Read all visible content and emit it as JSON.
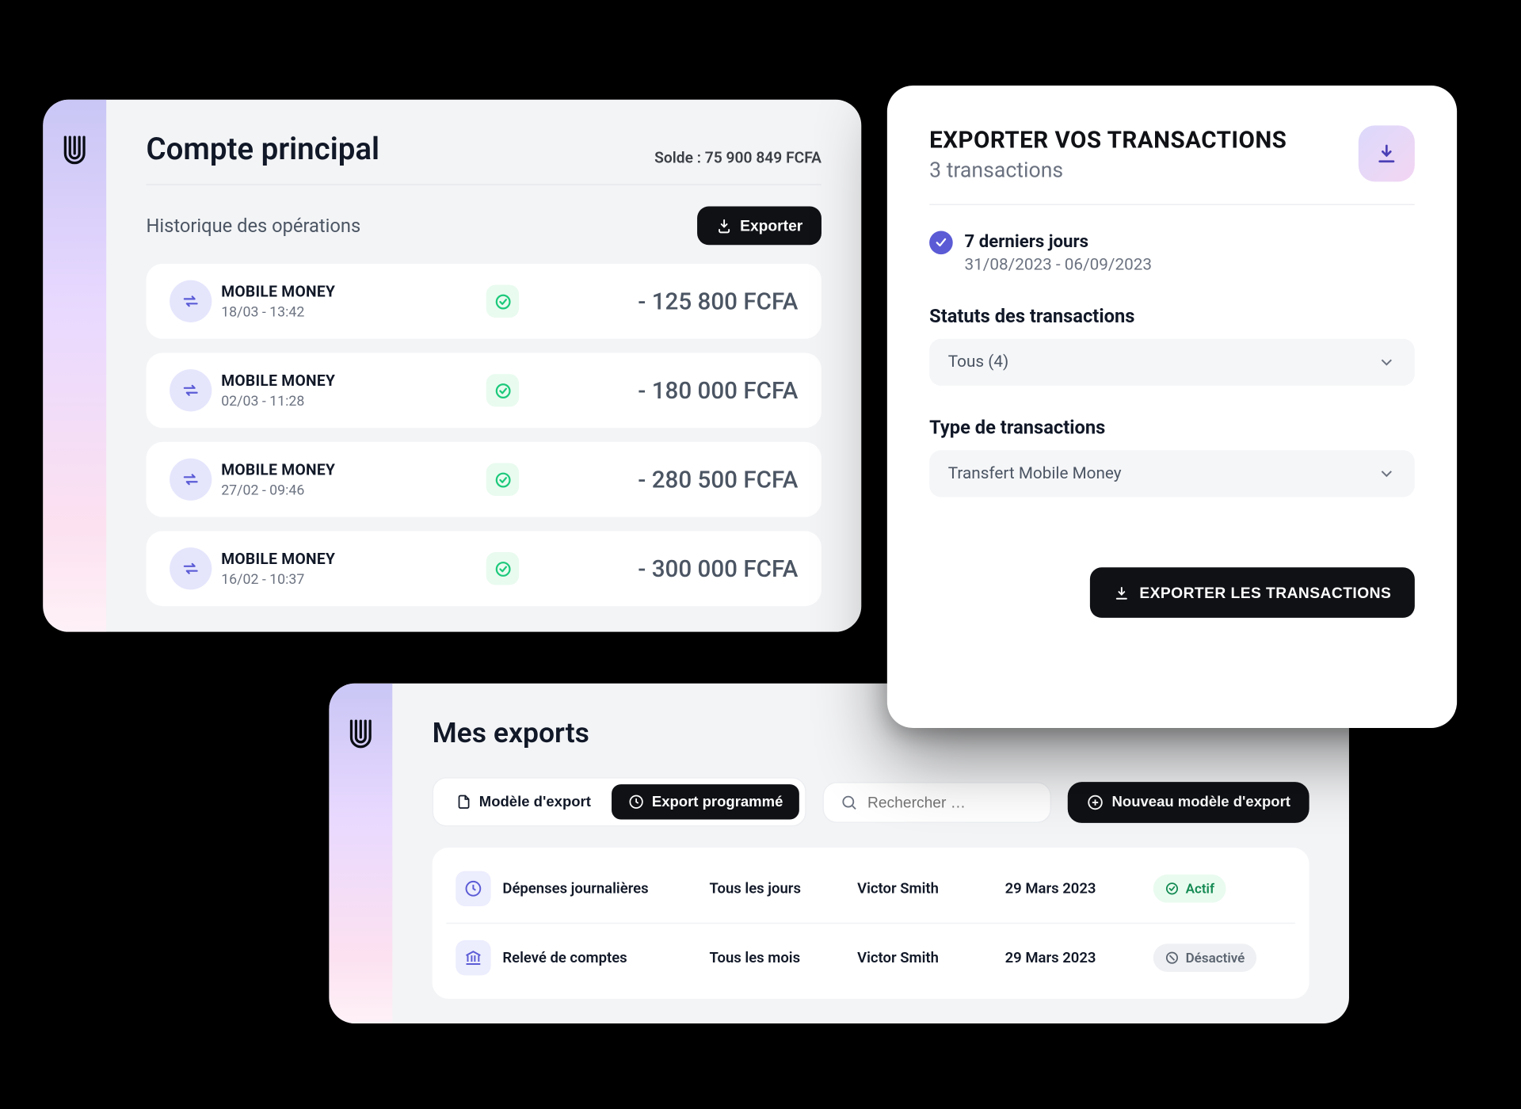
{
  "colors": {
    "page_bg": "#000000",
    "panel_bg": "#f3f4f6",
    "card_bg": "#ffffff",
    "accent_gradient_from": "#c9c6f5",
    "accent_gradient_to": "#fce1f0",
    "text_primary": "#111827",
    "text_muted": "#6b7280",
    "btn_dark": "#0f1115",
    "icon_circle_bg": "#e5e6fc",
    "icon_circle_fg": "#5b5bd6",
    "check_bg": "#e9fbef",
    "check_fg": "#1cc97b",
    "pill_active_bg": "#e9fbef",
    "pill_active_fg": "#148a53",
    "pill_inactive_bg": "#eef0f3",
    "pill_inactive_fg": "#5b6470",
    "select_bg": "#f5f6f8",
    "range_check_bg": "#5b5bd6"
  },
  "panelA": {
    "title": "Compte principal",
    "balance_label": "Solde : 75 900 849 FCFA",
    "history_label": "Historique des opérations",
    "export_label": "Exporter",
    "transactions": [
      {
        "label": "MOBILE MONEY",
        "time": "18/03 - 13:42",
        "amount": "- 125 800 FCFA"
      },
      {
        "label": "MOBILE MONEY",
        "time": "02/03 - 11:28",
        "amount": "- 180 000 FCFA"
      },
      {
        "label": "MOBILE MONEY",
        "time": "27/02 - 09:46",
        "amount": "- 280 500 FCFA"
      },
      {
        "label": "MOBILE MONEY",
        "time": "16/02 - 10:37",
        "amount": "- 300 000 FCFA"
      }
    ]
  },
  "panelB": {
    "title": "Mes exports",
    "tab_template": "Modèle d'export",
    "tab_scheduled": "Export programmé",
    "search_placeholder": "Rechercher …",
    "new_model": "Nouveau modèle d'export",
    "rows": [
      {
        "icon": "clock",
        "name": "Dépenses journalières",
        "freq": "Tous les jours",
        "owner": "Victor Smith",
        "date": "29 Mars 2023",
        "status": "Actif",
        "status_kind": "active"
      },
      {
        "icon": "bank",
        "name": "Relevé de comptes",
        "freq": "Tous les mois",
        "owner": "Victor Smith",
        "date": "29 Mars 2023",
        "status": "Désactivé",
        "status_kind": "inactive"
      }
    ]
  },
  "panelC": {
    "title": "EXPORTER VOS TRANSACTIONS",
    "subtitle": "3 transactions",
    "range_label": "7 derniers jours",
    "range_dates": "31/08/2023 - 06/09/2023",
    "status_section": "Statuts des transactions",
    "status_value": "Tous (4)",
    "type_section": "Type de transactions",
    "type_value": "Transfert Mobile Money",
    "export_button": "EXPORTER LES TRANSACTIONS"
  }
}
